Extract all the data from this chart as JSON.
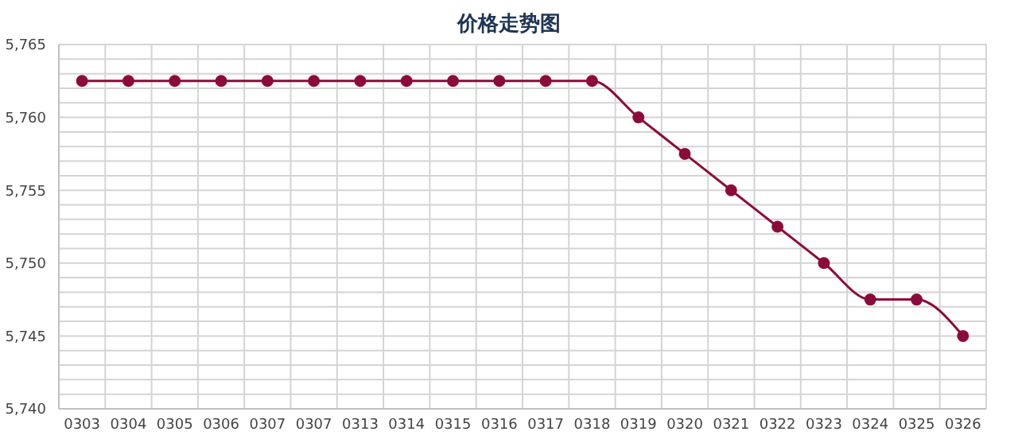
{
  "chart_data": {
    "type": "line",
    "title": "价格走势图",
    "categories": [
      "0303",
      "0304",
      "0305",
      "0306",
      "0307",
      "0307",
      "0313",
      "0314",
      "0315",
      "0316",
      "0317",
      "0318",
      "0319",
      "0320",
      "0321",
      "0322",
      "0323",
      "0324",
      "0325",
      "0326"
    ],
    "series": [
      {
        "color": "#8b0c3a",
        "values": [
          5762.5,
          5762.5,
          5762.5,
          5762.5,
          5762.5,
          5762.5,
          5762.5,
          5762.5,
          5762.5,
          5762.5,
          5762.5,
          5762.5,
          5760,
          5757.5,
          5755,
          5752.5,
          5750,
          5747.5,
          5747.5,
          5745
        ]
      }
    ],
    "ylim": [
      5740,
      5765
    ],
    "yticks": [
      {
        "value": 5740,
        "label": "5,740"
      },
      {
        "value": 5741,
        "label": null
      },
      {
        "value": 5742,
        "label": null
      },
      {
        "value": 5743,
        "label": null
      },
      {
        "value": 5744,
        "label": null
      },
      {
        "value": 5745,
        "label": "5,745"
      },
      {
        "value": 5746,
        "label": null
      },
      {
        "value": 5747,
        "label": null
      },
      {
        "value": 5748,
        "label": null
      },
      {
        "value": 5749,
        "label": null
      },
      {
        "value": 5750,
        "label": "5,750"
      },
      {
        "value": 5751,
        "label": null
      },
      {
        "value": 5752,
        "label": null
      },
      {
        "value": 5753,
        "label": null
      },
      {
        "value": 5754,
        "label": null
      },
      {
        "value": 5755,
        "label": "5,755"
      },
      {
        "value": 5756,
        "label": null
      },
      {
        "value": 5757,
        "label": null
      },
      {
        "value": 5758,
        "label": null
      },
      {
        "value": 5759,
        "label": null
      },
      {
        "value": 5760,
        "label": "5,760"
      },
      {
        "value": 5761,
        "label": null
      },
      {
        "value": 5762,
        "label": null
      },
      {
        "value": 5763,
        "label": null
      },
      {
        "value": 5764,
        "label": null
      },
      {
        "value": 5765,
        "label": "5,765"
      }
    ],
    "grid": true,
    "marker": "circle",
    "line_style": "solid"
  }
}
